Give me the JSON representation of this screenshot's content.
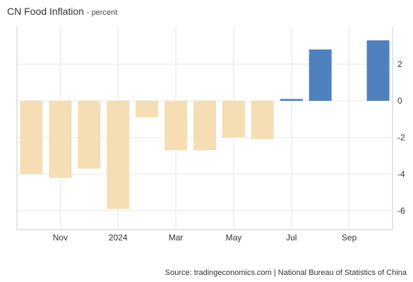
{
  "title": "CN Food Inflation",
  "subtitle": "- percent",
  "source": "Source: tradingeconomics.com | National Bureau of Statistics of China",
  "colors": {
    "positive": "#4f81bd",
    "negative": "#f5deb3",
    "grid": "#e6e6e6",
    "axis": "#cccccc"
  },
  "chart_data": {
    "type": "bar",
    "categories": [
      "2023-10",
      "2023-11",
      "2023-12",
      "2024-01",
      "2024-02",
      "2024-03",
      "2024-04",
      "2024-05",
      "2024-06",
      "2024-07",
      "2024-08",
      "2024-09",
      "2024-10"
    ],
    "values": [
      -4.0,
      -4.2,
      -3.7,
      -5.9,
      -0.9,
      -2.7,
      -2.7,
      -2.0,
      -2.1,
      0.1,
      2.8,
      null,
      3.3
    ],
    "x_tick_labels": [
      "Nov",
      "2024",
      "Mar",
      "May",
      "Jul",
      "Sep"
    ],
    "x_tick_categories": [
      "2023-11",
      "2024-01",
      "2024-03",
      "2024-05",
      "2024-07",
      "2024-09"
    ],
    "y_ticks": [
      2,
      0,
      -2,
      -4,
      -6
    ],
    "ylim": [
      -7,
      3.8
    ],
    "y_axis_position": "right",
    "grid": true
  }
}
